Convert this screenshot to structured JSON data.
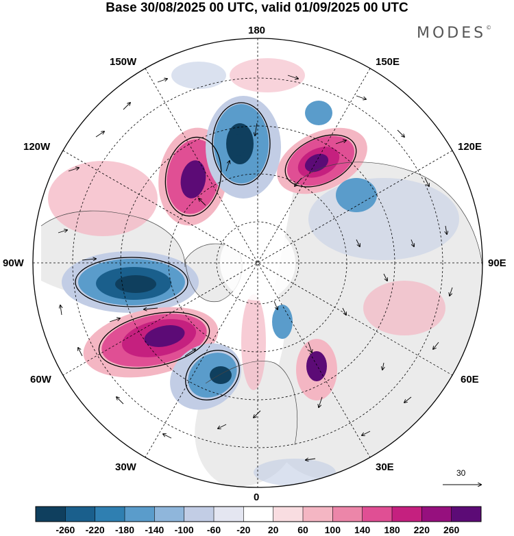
{
  "title": "Base 30/08/2025 00 UTC, valid 01/09/2025 00 UTC",
  "brand": "MODES",
  "brand_mark": "©",
  "longitude_labels": {
    "lon_180": "180",
    "lon_150w": "150W",
    "lon_150e": "150E",
    "lon_120w": "120W",
    "lon_120e": "120E",
    "lon_90w": "90W",
    "lon_90e": "90E",
    "lon_60w": "60W",
    "lon_60e": "60E",
    "lon_30w": "30W",
    "lon_30e": "30E",
    "lon_0": "0"
  },
  "reference_vector": {
    "value": "30"
  },
  "colorbar": {
    "labels": [
      "-260",
      "-220",
      "-180",
      "-140",
      "-100",
      "-60",
      "-20",
      "20",
      "60",
      "100",
      "140",
      "180",
      "220",
      "260"
    ],
    "colors": [
      "#0f3f5e",
      "#1a5f8c",
      "#2f7fb1",
      "#5a9ccb",
      "#8fb6db",
      "#c2cde5",
      "#e4e6f1",
      "#ffffff",
      "#f9dde1",
      "#f4b6c3",
      "#ec86a9",
      "#e04f94",
      "#c5207f",
      "#96107e",
      "#5c0b76"
    ]
  },
  "anomaly_palette": {
    "neg_strong": "#1a5f8c",
    "neg_core": "#0f3f5e",
    "neg_mid": "#5a9ccb",
    "neg_light": "#c2cde5",
    "pos_light": "#f4b6c3",
    "pos_mid": "#e04f94",
    "pos_strong": "#c5207f",
    "pos_core": "#5c0b76",
    "land": "#ebebeb"
  }
}
